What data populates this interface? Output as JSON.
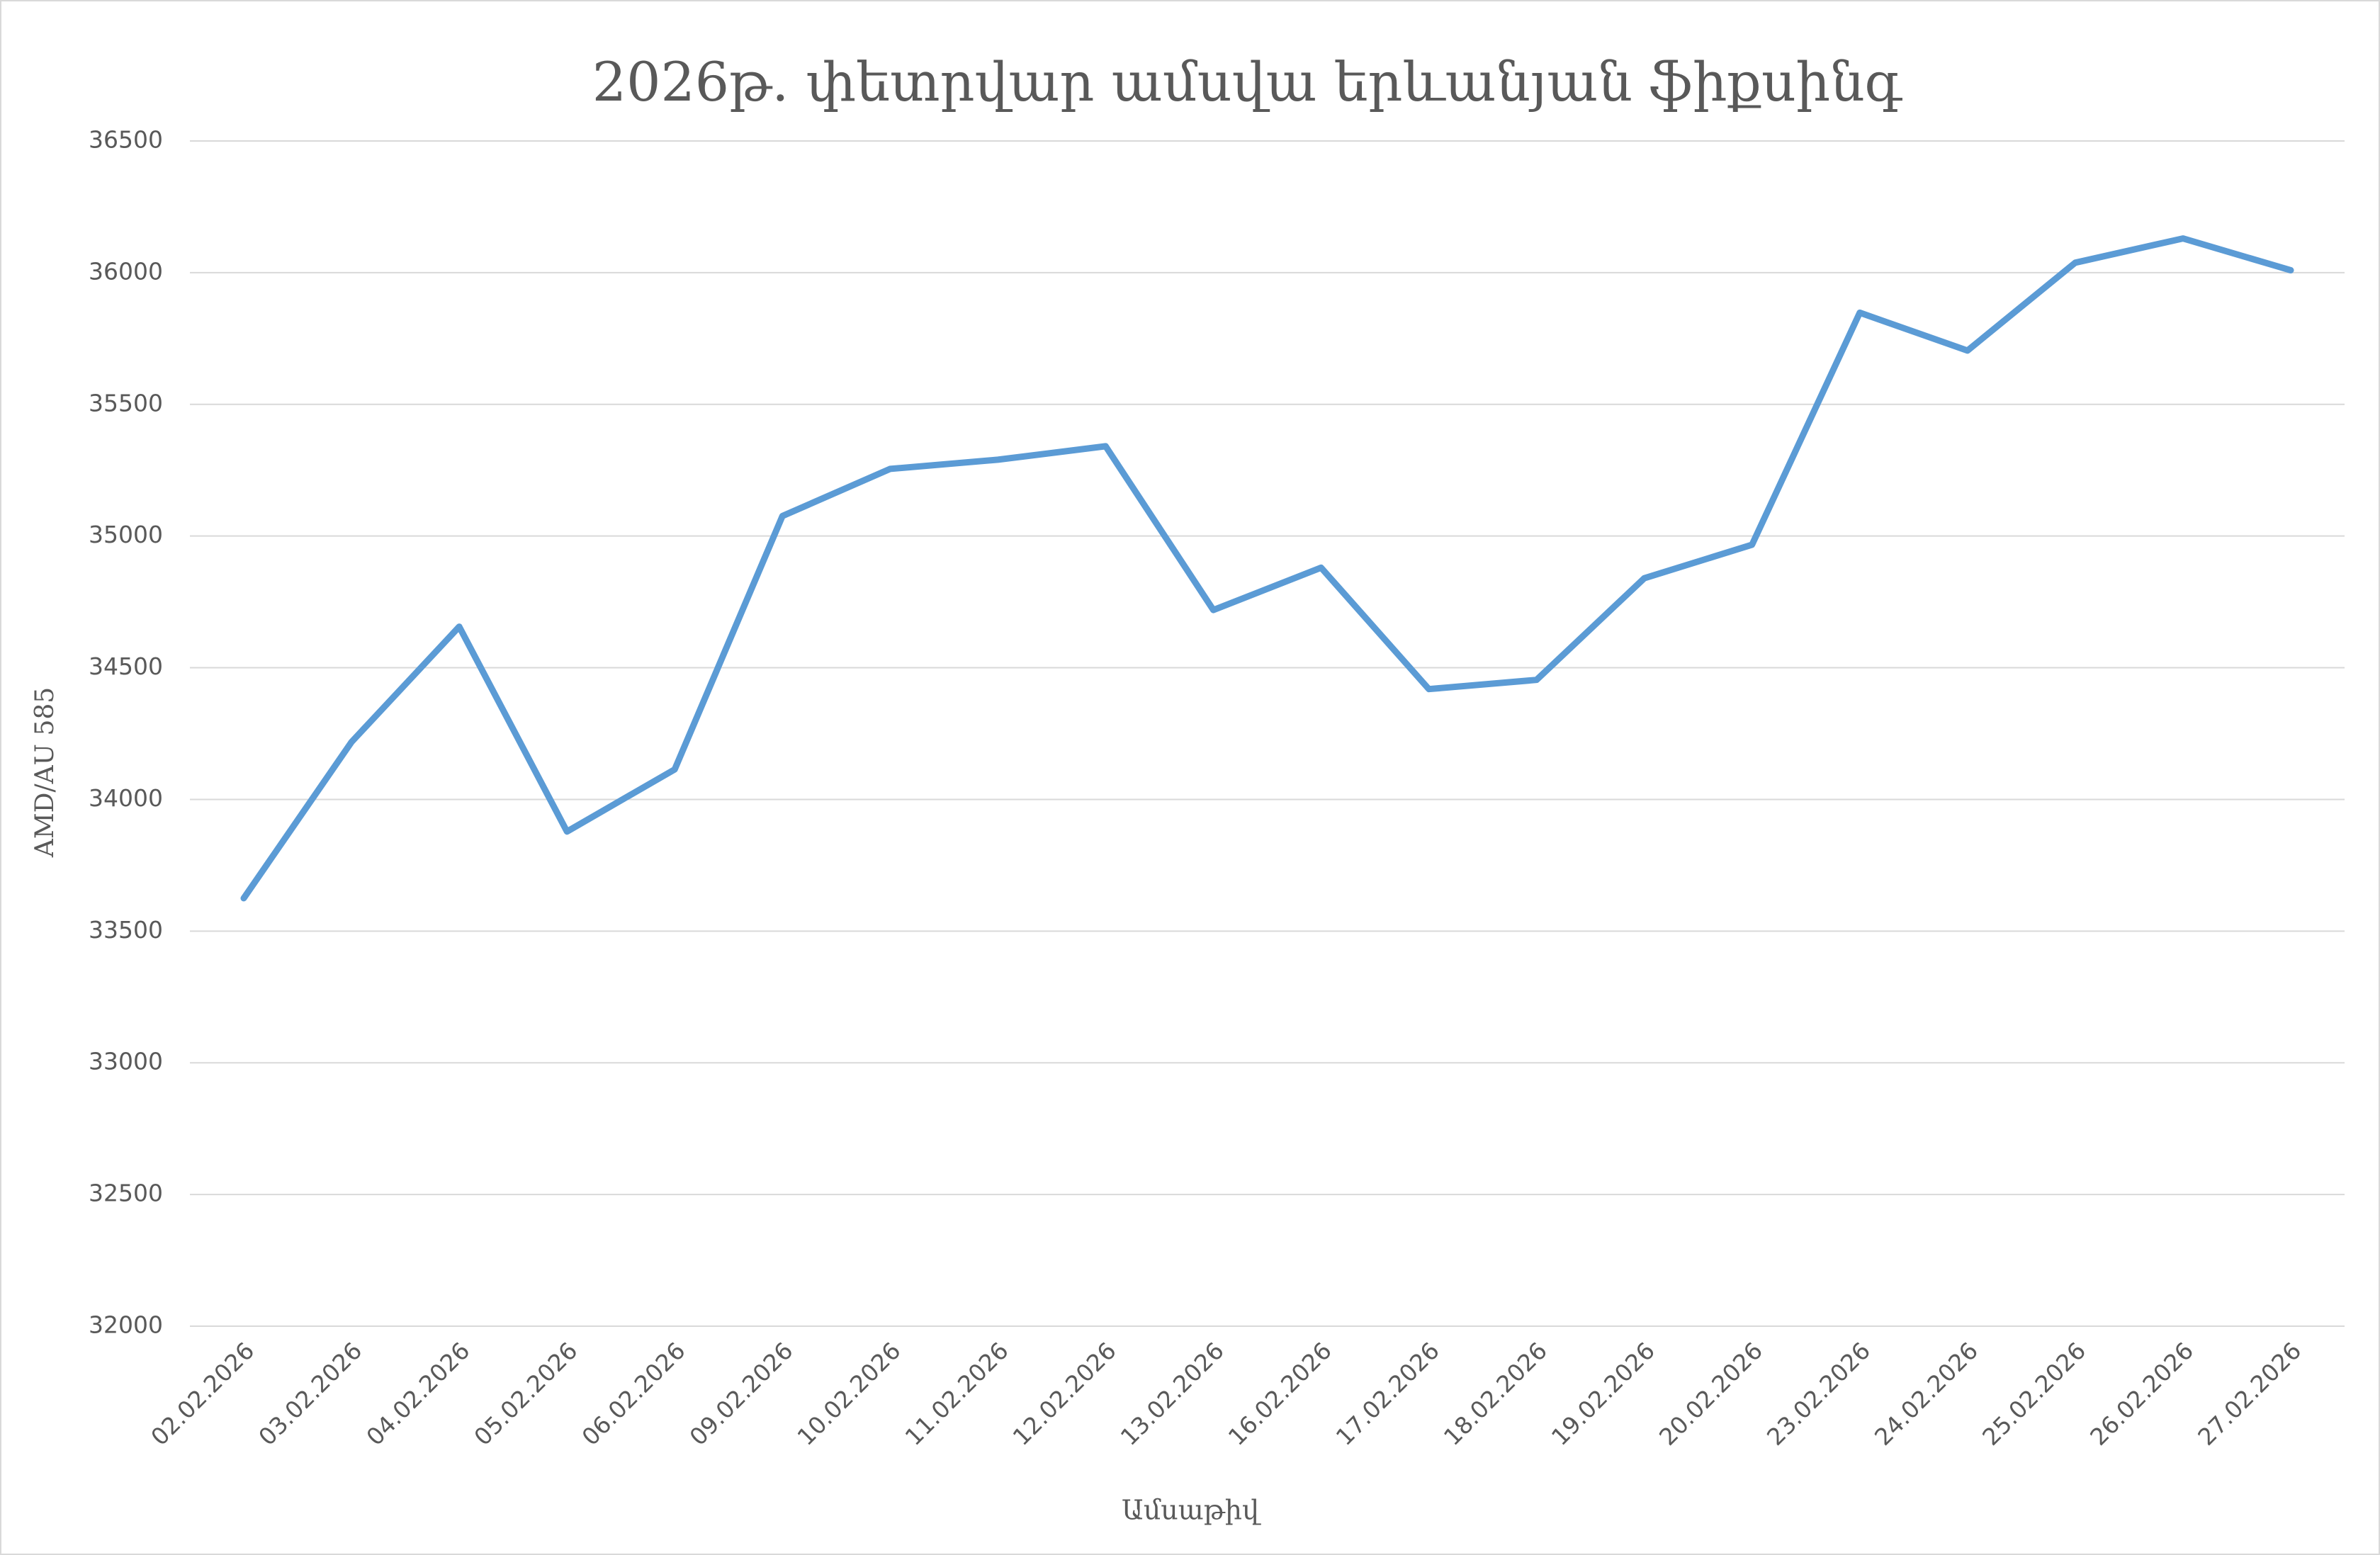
{
  "chart_data": {
    "type": "line",
    "title": "2026թ. փետրվար ամսվա երևանյան ֆիքսինգ",
    "x_label": "Ամսաթիվ",
    "y_label": "AMD/AU 585",
    "categories": [
      "02.02.2026",
      "03.02.2026",
      "04.02.2026",
      "05.02.2026",
      "06.02.2026",
      "09.02.2026",
      "10.02.2026",
      "11.02.2026",
      "12.02.2026",
      "13.02.2026",
      "16.02.2026",
      "17.02.2026",
      "18.02.2026",
      "19.02.2026",
      "20.02.2026",
      "23.02.2026",
      "24.02.2026",
      "25.02.2026",
      "26.02.2026",
      "27.02.2026"
    ],
    "values": [
      33625,
      34218,
      34656,
      33878,
      34114,
      35076,
      35255,
      35290,
      35341,
      34719,
      34880,
      34419,
      34454,
      34840,
      34967,
      35848,
      35704,
      36038,
      36130,
      36009
    ],
    "color": "#5b9bd5",
    "ylim": [
      32000,
      36500
    ],
    "yticks": [
      32000,
      32500,
      33000,
      33500,
      34000,
      34500,
      35000,
      35500,
      36000,
      36500
    ],
    "grid": true
  }
}
